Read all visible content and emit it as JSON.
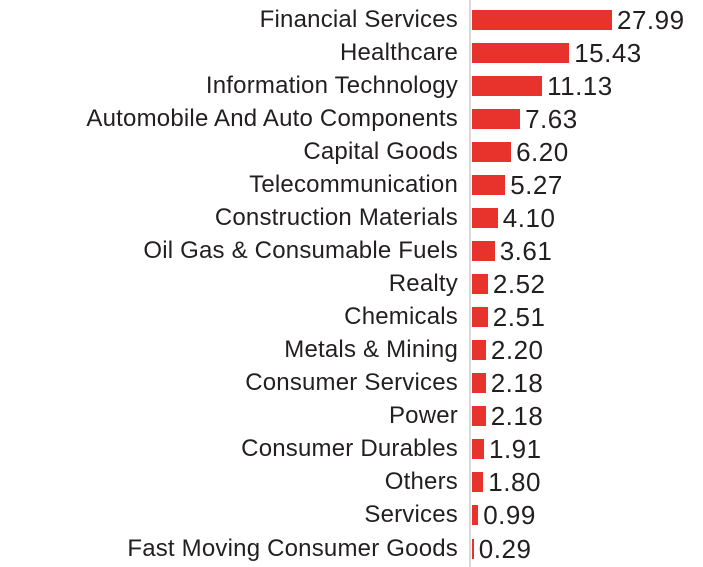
{
  "chart_data": {
    "type": "bar",
    "orientation": "horizontal",
    "title": "",
    "xlabel": "",
    "ylabel": "",
    "legend": false,
    "grid": false,
    "xlim": [
      0,
      22.2
    ],
    "bar_color": "#e8332c",
    "axis_line_color": "#d9d9d9",
    "text_color": "#231f20",
    "categories": [
      "Financial Services",
      "Healthcare",
      "Information Technology",
      "Automobile And Auto Components",
      "Capital Goods",
      "Telecommunication",
      "Construction Materials",
      "Oil Gas & Consumable Fuels",
      "Realty",
      "Chemicals",
      "Metals & Mining",
      "Consumer Services",
      "Power",
      "Consumer Durables",
      "Others",
      "Services",
      "Fast Moving Consumer Goods"
    ],
    "values": [
      27.99,
      15.43,
      11.13,
      7.63,
      6.2,
      5.27,
      4.1,
      3.61,
      2.52,
      2.51,
      2.2,
      2.18,
      2.18,
      1.91,
      1.8,
      0.99,
      0.29
    ],
    "value_labels": [
      "27.99",
      "15.43",
      "11.13",
      "7.63",
      "6.20",
      "5.27",
      "4.10",
      "3.61",
      "2.52",
      "2.51",
      "2.20",
      "2.18",
      "2.18",
      "1.91",
      "1.80",
      "0.99",
      "0.29"
    ]
  }
}
